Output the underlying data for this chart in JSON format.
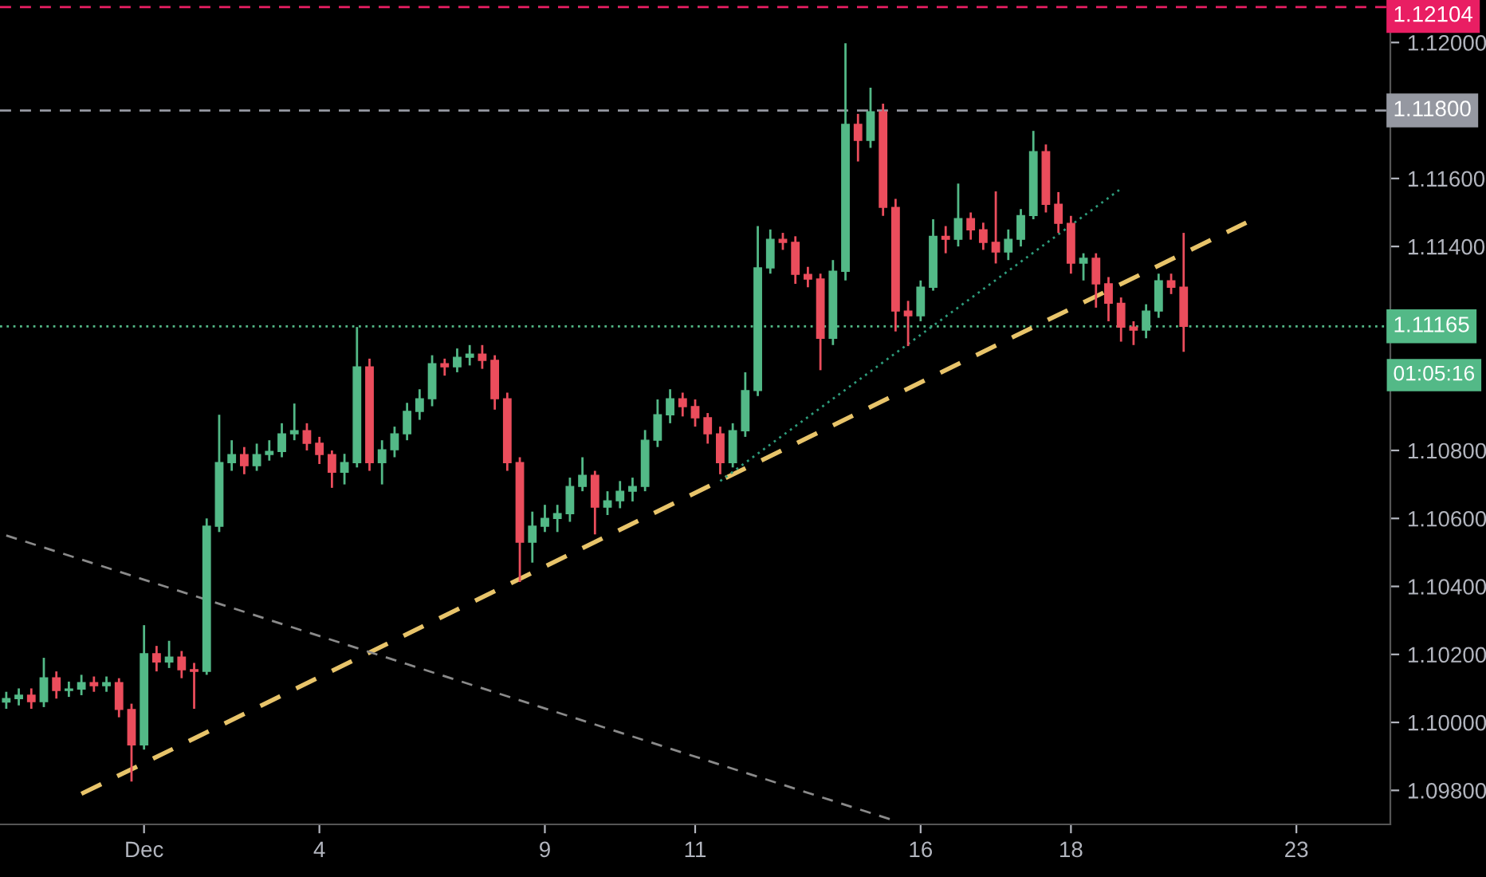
{
  "chart_data": {
    "type": "candlestick",
    "categories": [
      null,
      null,
      null,
      null,
      null,
      null,
      null,
      null,
      null,
      null,
      null,
      "Dec",
      null,
      null,
      null,
      null,
      null,
      null,
      null,
      null,
      null,
      null,
      null,
      null,
      null,
      "4",
      null,
      null,
      null,
      null,
      null,
      null,
      null,
      null,
      null,
      null,
      null,
      null,
      null,
      null,
      null,
      null,
      null,
      "9",
      null,
      null,
      null,
      null,
      null,
      null,
      null,
      null,
      null,
      null,
      null,
      "11",
      null,
      null,
      null,
      null,
      null,
      null,
      null,
      null,
      null,
      null,
      null,
      null,
      null,
      null,
      null,
      null,
      null,
      "16",
      null,
      null,
      null,
      null,
      null,
      null,
      null,
      null,
      null,
      null,
      null,
      "18",
      null,
      null,
      null,
      null,
      null,
      null,
      null,
      null,
      null,
      null,
      null,
      null,
      null,
      null,
      null,
      null,
      null,
      "23",
      null,
      null,
      null,
      null,
      null,
      null,
      null
    ],
    "ohlc": [
      [
        1.1006,
        1.1009,
        1.1004,
        1.1007
      ],
      [
        1.1007,
        1.101,
        1.1005,
        1.1008
      ],
      [
        1.1008,
        1.101,
        1.1004,
        1.10061
      ],
      [
        1.10061,
        1.1019,
        1.10045,
        1.10131
      ],
      [
        1.10131,
        1.1015,
        1.1007,
        1.10094
      ],
      [
        1.10094,
        1.1012,
        1.10075,
        1.10098
      ],
      [
        1.10098,
        1.1014,
        1.1008,
        1.10117
      ],
      [
        1.10117,
        1.10135,
        1.1009,
        1.10108
      ],
      [
        1.10108,
        1.10135,
        1.1009,
        1.10117
      ],
      [
        1.10117,
        1.1013,
        1.10015,
        1.10038
      ],
      [
        1.10038,
        1.10055,
        1.09826,
        1.09934
      ],
      [
        1.09934,
        1.10286,
        1.0992,
        1.10202
      ],
      [
        1.10202,
        1.10225,
        1.1015,
        1.10178
      ],
      [
        1.10178,
        1.1024,
        1.1016,
        1.10192
      ],
      [
        1.10192,
        1.1021,
        1.1013,
        1.10155
      ],
      [
        1.10155,
        1.10175,
        1.1004,
        1.1015
      ],
      [
        1.1015,
        1.106,
        1.1014,
        1.10577
      ],
      [
        1.10577,
        1.10905,
        1.1056,
        1.10764
      ],
      [
        1.10764,
        1.1083,
        1.1074,
        1.10788
      ],
      [
        1.10788,
        1.1081,
        1.1073,
        1.10755
      ],
      [
        1.10755,
        1.1082,
        1.1074,
        1.10788
      ],
      [
        1.10788,
        1.1083,
        1.1077,
        1.10797
      ],
      [
        1.10797,
        1.1088,
        1.1078,
        1.10849
      ],
      [
        1.10849,
        1.10938,
        1.1083,
        1.10858
      ],
      [
        1.10858,
        1.1088,
        1.108,
        1.10821
      ],
      [
        1.10821,
        1.1084,
        1.1076,
        1.10788
      ],
      [
        1.10788,
        1.108,
        1.1069,
        1.10736
      ],
      [
        1.10736,
        1.1079,
        1.107,
        1.10764
      ],
      [
        1.10764,
        1.11163,
        1.1075,
        1.11046
      ],
      [
        1.11046,
        1.1107,
        1.1074,
        1.10764
      ],
      [
        1.10764,
        1.1083,
        1.107,
        1.10802
      ],
      [
        1.10802,
        1.1087,
        1.1078,
        1.10849
      ],
      [
        1.10849,
        1.1094,
        1.1083,
        1.10915
      ],
      [
        1.10915,
        1.1098,
        1.1089,
        1.10952
      ],
      [
        1.10952,
        1.1108,
        1.1093,
        1.11055
      ],
      [
        1.11055,
        1.1107,
        1.1102,
        1.11046
      ],
      [
        1.11046,
        1.111,
        1.1103,
        1.11074
      ],
      [
        1.11074,
        1.1111,
        1.1105,
        1.11083
      ],
      [
        1.11083,
        1.1111,
        1.1104,
        1.11065
      ],
      [
        1.11065,
        1.1108,
        1.1092,
        1.10952
      ],
      [
        1.10952,
        1.1097,
        1.1074,
        1.10764
      ],
      [
        1.10764,
        1.1078,
        1.10413,
        1.1053
      ],
      [
        1.1053,
        1.1062,
        1.1047,
        1.10577
      ],
      [
        1.10577,
        1.1064,
        1.1056,
        1.106
      ],
      [
        1.106,
        1.1064,
        1.1056,
        1.10614
      ],
      [
        1.10614,
        1.1072,
        1.1059,
        1.10694
      ],
      [
        1.10694,
        1.1078,
        1.1068,
        1.10727
      ],
      [
        1.10727,
        1.1074,
        1.10553,
        1.10633
      ],
      [
        1.10633,
        1.1068,
        1.1061,
        1.10652
      ],
      [
        1.10652,
        1.1071,
        1.1063,
        1.1068
      ],
      [
        1.1068,
        1.1072,
        1.1065,
        1.10694
      ],
      [
        1.10694,
        1.1086,
        1.1068,
        1.1083
      ],
      [
        1.1083,
        1.1095,
        1.1081,
        1.10905
      ],
      [
        1.10905,
        1.1098,
        1.1088,
        1.10952
      ],
      [
        1.10952,
        1.1097,
        1.109,
        1.10929
      ],
      [
        1.10929,
        1.1095,
        1.1087,
        1.10896
      ],
      [
        1.10896,
        1.1091,
        1.1082,
        1.10849
      ],
      [
        1.10849,
        1.1087,
        1.1073,
        1.10764
      ],
      [
        1.10764,
        1.1088,
        1.1075,
        1.10858
      ],
      [
        1.10858,
        1.1103,
        1.1084,
        1.10976
      ],
      [
        1.10976,
        1.1146,
        1.1096,
        1.11337
      ],
      [
        1.11337,
        1.1145,
        1.1132,
        1.11421
      ],
      [
        1.11421,
        1.1144,
        1.1139,
        1.11412
      ],
      [
        1.11412,
        1.1143,
        1.1129,
        1.11318
      ],
      [
        1.11318,
        1.1134,
        1.1128,
        1.11304
      ],
      [
        1.11304,
        1.1132,
        1.11036,
        1.1113
      ],
      [
        1.1113,
        1.1136,
        1.1111,
        1.11327
      ],
      [
        1.11327,
        1.11998,
        1.113,
        1.11759
      ],
      [
        1.11759,
        1.1179,
        1.1165,
        1.11712
      ],
      [
        1.11712,
        1.11867,
        1.1169,
        1.11796
      ],
      [
        1.11796,
        1.1182,
        1.1149,
        1.11515
      ],
      [
        1.11515,
        1.1154,
        1.1115,
        1.1121
      ],
      [
        1.1121,
        1.1124,
        1.11107,
        1.11196
      ],
      [
        1.11196,
        1.113,
        1.1118,
        1.1128
      ],
      [
        1.1128,
        1.1148,
        1.1127,
        1.1143
      ],
      [
        1.1143,
        1.1146,
        1.1138,
        1.11421
      ],
      [
        1.11421,
        1.11585,
        1.114,
        1.11482
      ],
      [
        1.11482,
        1.115,
        1.1142,
        1.11449
      ],
      [
        1.11449,
        1.1147,
        1.1139,
        1.11412
      ],
      [
        1.11412,
        1.11562,
        1.1135,
        1.11384
      ],
      [
        1.11384,
        1.1145,
        1.1136,
        1.11421
      ],
      [
        1.11421,
        1.1151,
        1.114,
        1.11491
      ],
      [
        1.11491,
        1.1174,
        1.1148,
        1.11679
      ],
      [
        1.11679,
        1.117,
        1.115,
        1.11524
      ],
      [
        1.11524,
        1.1156,
        1.1144,
        1.11468
      ],
      [
        1.11468,
        1.1149,
        1.1132,
        1.11351
      ],
      [
        1.11351,
        1.1138,
        1.113,
        1.11365
      ],
      [
        1.11365,
        1.1138,
        1.1122,
        1.1129
      ],
      [
        1.1129,
        1.1131,
        1.1118,
        1.11233
      ],
      [
        1.11233,
        1.1125,
        1.1112,
        1.11163
      ],
      [
        1.11163,
        1.1118,
        1.1111,
        1.11154
      ],
      [
        1.11154,
        1.1123,
        1.1113,
        1.1121
      ],
      [
        1.1121,
        1.1132,
        1.1119,
        1.11299
      ],
      [
        1.11299,
        1.1132,
        1.1126,
        1.1128
      ],
      [
        1.1128,
        1.1144,
        1.1109,
        1.11165
      ],
      null,
      null,
      null,
      null,
      null,
      null,
      null,
      null,
      null,
      null,
      null,
      null,
      null,
      null,
      null,
      null
    ],
    "series": [
      {
        "type": "line",
        "values": [
          null,
          null,
          null,
          null,
          null,
          null,
          1.0979,
          null,
          null,
          null,
          null,
          null,
          null,
          null,
          null,
          null,
          null,
          null,
          null,
          null,
          null,
          null,
          null,
          null,
          null,
          null,
          null,
          null,
          null,
          null,
          null,
          null,
          null,
          null,
          null,
          null,
          null,
          null,
          null,
          null,
          null,
          null,
          null,
          null,
          null,
          null,
          null,
          null,
          null,
          null,
          null,
          null,
          null,
          null,
          null,
          null,
          null,
          null,
          null,
          null,
          null,
          null,
          null,
          null,
          null,
          null,
          null,
          null,
          null,
          null,
          null,
          null,
          null,
          null,
          null,
          null,
          null,
          null,
          null,
          null,
          null,
          null,
          null,
          null,
          null,
          null,
          null,
          null,
          null,
          null,
          null,
          null,
          null,
          null,
          null,
          null,
          null,
          null,
          null,
          1.1147,
          null,
          null,
          null,
          null,
          null,
          null,
          null,
          null,
          null,
          null,
          null
        ],
        "color": "#e8c46a",
        "line_style": "dashed"
      },
      {
        "type": "line",
        "values": [
          null,
          null,
          null,
          null,
          null,
          null,
          null,
          null,
          null,
          null,
          null,
          null,
          null,
          null,
          null,
          null,
          null,
          null,
          null,
          null,
          null,
          null,
          null,
          null,
          null,
          null,
          null,
          null,
          null,
          null,
          null,
          null,
          null,
          null,
          null,
          null,
          null,
          null,
          null,
          null,
          null,
          null,
          null,
          null,
          null,
          null,
          null,
          null,
          null,
          null,
          null,
          null,
          null,
          null,
          null,
          null,
          null,
          1.1071,
          null,
          null,
          null,
          null,
          null,
          null,
          null,
          null,
          null,
          null,
          null,
          null,
          null,
          null,
          null,
          null,
          null,
          null,
          null,
          null,
          null,
          null,
          null,
          null,
          null,
          null,
          null,
          null,
          null,
          null,
          null,
          1.1157,
          null,
          null,
          null,
          null,
          null,
          null,
          null,
          null,
          null,
          null,
          null,
          null,
          null,
          null,
          null,
          null,
          null,
          null,
          null,
          null,
          null
        ],
        "color": "#2e9c7c",
        "line_style": "dotted"
      },
      {
        "type": "line",
        "values": [
          1.1055,
          null,
          null,
          null,
          null,
          null,
          null,
          null,
          null,
          null,
          null,
          null,
          null,
          null,
          null,
          null,
          null,
          null,
          null,
          null,
          null,
          null,
          null,
          null,
          null,
          null,
          null,
          null,
          null,
          null,
          null,
          null,
          null,
          null,
          null,
          null,
          null,
          null,
          null,
          null,
          null,
          null,
          null,
          null,
          null,
          null,
          null,
          null,
          null,
          null,
          null,
          null,
          null,
          null,
          null,
          null,
          null,
          null,
          null,
          null,
          null,
          null,
          null,
          null,
          null,
          null,
          null,
          null,
          null,
          null,
          null,
          1.0971,
          null,
          null,
          null,
          null,
          null,
          null,
          null,
          null,
          null,
          null,
          null,
          null,
          null,
          null,
          null,
          null,
          null,
          null,
          null,
          null,
          null,
          null,
          null,
          null,
          null,
          null,
          null,
          null,
          null,
          null,
          null,
          null,
          null,
          null,
          null,
          null,
          null,
          null,
          null
        ],
        "color": "#8a8a8a",
        "line_style": "dashed"
      }
    ],
    "ylim": [
      1.097,
      1.12125
    ],
    "yticks": [
      {
        "value": 1.098,
        "label": "1.09800"
      },
      {
        "value": 1.1,
        "label": "1.10000"
      },
      {
        "value": 1.102,
        "label": "1.10200"
      },
      {
        "value": 1.104,
        "label": "1.10400"
      },
      {
        "value": 1.106,
        "label": "1.10600"
      },
      {
        "value": 1.108,
        "label": "1.10800"
      },
      {
        "value": 1.11,
        "label": null
      },
      {
        "value": 1.114,
        "label": "1.11400"
      },
      {
        "value": 1.116,
        "label": "1.11600"
      },
      {
        "value": 1.12,
        "label": "1.12000"
      }
    ],
    "ref_lines": [
      {
        "axis": "y",
        "value": 1.12104,
        "label": "1.12104",
        "color": "#e91e63",
        "line_style": "dashed"
      },
      {
        "axis": "y",
        "value": 1.118,
        "label": "1.11800",
        "color": "#9598a1",
        "line_style": "dashed"
      },
      {
        "axis": "y",
        "value": 1.11165,
        "label": "1.11165",
        "color": "#53b987",
        "line_style": "dotted"
      }
    ],
    "annotations": [
      "01:05:16"
    ],
    "grid": false,
    "legend": false
  }
}
